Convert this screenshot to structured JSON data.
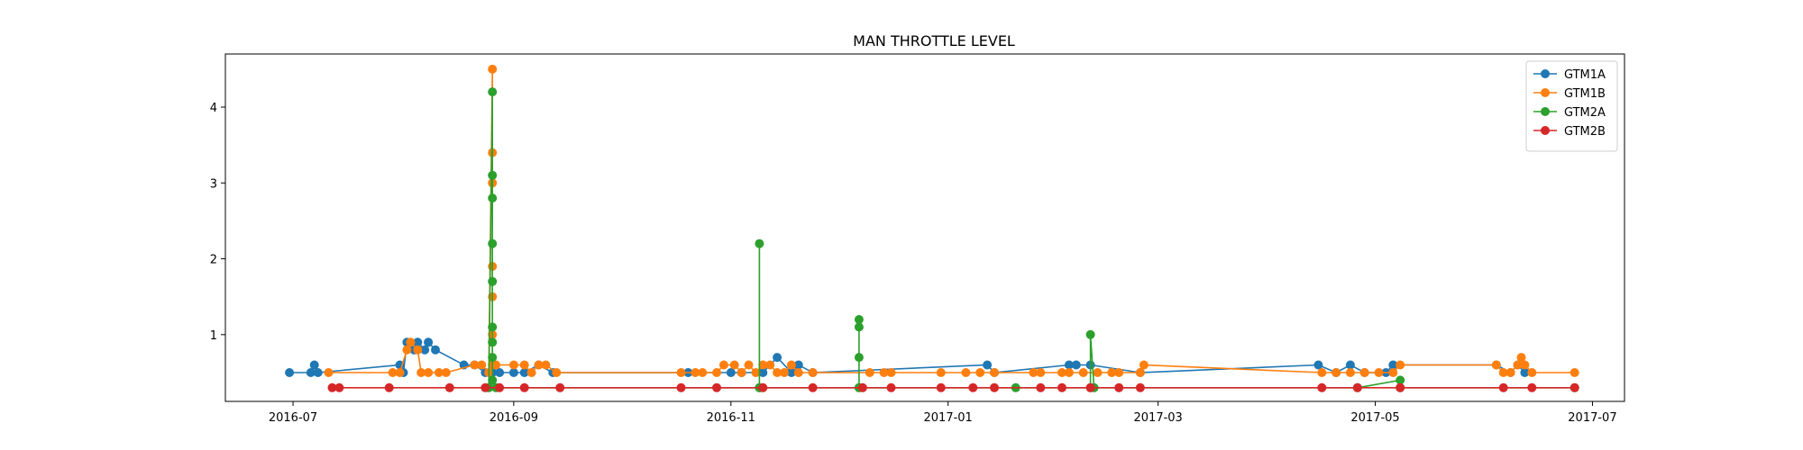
{
  "chart_data": {
    "type": "line",
    "title": "MAN THROTTLE LEVEL",
    "xlabel": "",
    "ylabel": "",
    "xlim": [
      "2016-06-12",
      "2017-07-10"
    ],
    "ylim": [
      0.12,
      4.7
    ],
    "x_ticks": [
      "2016-07-01",
      "2016-09-01",
      "2016-11-01",
      "2017-01-01",
      "2017-03-01",
      "2017-05-01",
      "2017-07-01"
    ],
    "x_tick_labels": [
      "2016-07",
      "2016-09",
      "2016-11",
      "2017-01",
      "2017-03",
      "2017-05",
      "2017-07"
    ],
    "y_ticks": [
      1,
      2,
      3,
      4
    ],
    "y_tick_labels": [
      "1",
      "2",
      "3",
      "4"
    ],
    "grid": false,
    "legend_position": "top-right",
    "series": [
      {
        "name": "GTM1A",
        "color": "#1f77b4",
        "points": [
          [
            "2016-06-30",
            0.5
          ],
          [
            "2016-07-06",
            0.5
          ],
          [
            "2016-07-07",
            0.6
          ],
          [
            "2016-07-08",
            0.5
          ],
          [
            "2016-07-31",
            0.6
          ],
          [
            "2016-08-01",
            0.5
          ],
          [
            "2016-08-02",
            0.9
          ],
          [
            "2016-08-04",
            0.8
          ],
          [
            "2016-08-05",
            0.9
          ],
          [
            "2016-08-07",
            0.8
          ],
          [
            "2016-08-08",
            0.9
          ],
          [
            "2016-08-10",
            0.8
          ],
          [
            "2016-08-18",
            0.6
          ],
          [
            "2016-08-21",
            0.6
          ],
          [
            "2016-08-24",
            0.5
          ],
          [
            "2016-08-26",
            0.5
          ],
          [
            "2016-08-28",
            0.5
          ],
          [
            "2016-09-01",
            0.5
          ],
          [
            "2016-09-04",
            0.5
          ],
          [
            "2016-09-08",
            0.6
          ],
          [
            "2016-09-12",
            0.5
          ],
          [
            "2016-10-20",
            0.5
          ],
          [
            "2016-11-01",
            0.5
          ],
          [
            "2016-11-04",
            0.5
          ],
          [
            "2016-11-10",
            0.5
          ],
          [
            "2016-11-14",
            0.7
          ],
          [
            "2016-11-18",
            0.5
          ],
          [
            "2016-11-20",
            0.6
          ],
          [
            "2016-11-24",
            0.5
          ],
          [
            "2017-01-12",
            0.6
          ],
          [
            "2017-01-14",
            0.5
          ],
          [
            "2017-02-04",
            0.6
          ],
          [
            "2017-02-06",
            0.6
          ],
          [
            "2017-02-10",
            0.6
          ],
          [
            "2017-02-24",
            0.5
          ],
          [
            "2017-04-15",
            0.6
          ],
          [
            "2017-04-20",
            0.5
          ],
          [
            "2017-04-24",
            0.6
          ],
          [
            "2017-04-28",
            0.5
          ],
          [
            "2017-05-04",
            0.5
          ],
          [
            "2017-05-06",
            0.6
          ],
          [
            "2017-06-04",
            0.6
          ],
          [
            "2017-06-08",
            0.5
          ],
          [
            "2017-06-10",
            0.6
          ],
          [
            "2017-06-12",
            0.5
          ]
        ]
      },
      {
        "name": "GTM1B",
        "color": "#ff7f0e",
        "points": [
          [
            "2016-07-11",
            0.5
          ],
          [
            "2016-07-29",
            0.5
          ],
          [
            "2016-07-31",
            0.5
          ],
          [
            "2016-08-02",
            0.8
          ],
          [
            "2016-08-03",
            0.9
          ],
          [
            "2016-08-05",
            0.8
          ],
          [
            "2016-08-06",
            0.5
          ],
          [
            "2016-08-08",
            0.5
          ],
          [
            "2016-08-11",
            0.5
          ],
          [
            "2016-08-13",
            0.5
          ],
          [
            "2016-08-21",
            0.6
          ],
          [
            "2016-08-23",
            0.6
          ],
          [
            "2016-08-25",
            0.5
          ],
          [
            "2016-08-26",
            4.5
          ],
          [
            "2016-08-26",
            3.4
          ],
          [
            "2016-08-26",
            3.0
          ],
          [
            "2016-08-26",
            1.9
          ],
          [
            "2016-08-26",
            1.5
          ],
          [
            "2016-08-26",
            1.0
          ],
          [
            "2016-08-26",
            0.6
          ],
          [
            "2016-08-27",
            0.6
          ],
          [
            "2016-09-01",
            0.6
          ],
          [
            "2016-09-04",
            0.6
          ],
          [
            "2016-09-06",
            0.5
          ],
          [
            "2016-09-08",
            0.6
          ],
          [
            "2016-09-10",
            0.6
          ],
          [
            "2016-09-13",
            0.5
          ],
          [
            "2016-10-18",
            0.5
          ],
          [
            "2016-10-22",
            0.5
          ],
          [
            "2016-10-24",
            0.5
          ],
          [
            "2016-10-28",
            0.5
          ],
          [
            "2016-10-30",
            0.6
          ],
          [
            "2016-11-02",
            0.6
          ],
          [
            "2016-11-04",
            0.5
          ],
          [
            "2016-11-06",
            0.6
          ],
          [
            "2016-11-08",
            0.5
          ],
          [
            "2016-11-10",
            0.6
          ],
          [
            "2016-11-12",
            0.6
          ],
          [
            "2016-11-14",
            0.5
          ],
          [
            "2016-11-16",
            0.5
          ],
          [
            "2016-11-18",
            0.6
          ],
          [
            "2016-11-20",
            0.5
          ],
          [
            "2016-11-24",
            0.5
          ],
          [
            "2016-12-10",
            0.5
          ],
          [
            "2016-12-14",
            0.5
          ],
          [
            "2016-12-16",
            0.5
          ],
          [
            "2016-12-30",
            0.5
          ],
          [
            "2017-01-06",
            0.5
          ],
          [
            "2017-01-10",
            0.5
          ],
          [
            "2017-01-14",
            0.5
          ],
          [
            "2017-01-25",
            0.5
          ],
          [
            "2017-01-27",
            0.5
          ],
          [
            "2017-02-02",
            0.5
          ],
          [
            "2017-02-04",
            0.5
          ],
          [
            "2017-02-08",
            0.5
          ],
          [
            "2017-02-12",
            0.5
          ],
          [
            "2017-02-16",
            0.5
          ],
          [
            "2017-02-18",
            0.5
          ],
          [
            "2017-02-24",
            0.5
          ],
          [
            "2017-02-25",
            0.6
          ],
          [
            "2017-04-16",
            0.5
          ],
          [
            "2017-04-20",
            0.5
          ],
          [
            "2017-04-24",
            0.5
          ],
          [
            "2017-04-28",
            0.5
          ],
          [
            "2017-05-02",
            0.5
          ],
          [
            "2017-05-06",
            0.5
          ],
          [
            "2017-05-08",
            0.6
          ],
          [
            "2017-06-04",
            0.6
          ],
          [
            "2017-06-06",
            0.5
          ],
          [
            "2017-06-08",
            0.5
          ],
          [
            "2017-06-10",
            0.6
          ],
          [
            "2017-06-11",
            0.7
          ],
          [
            "2017-06-12",
            0.6
          ],
          [
            "2017-06-14",
            0.5
          ],
          [
            "2017-06-26",
            0.5
          ]
        ]
      },
      {
        "name": "GTM2A",
        "color": "#2ca02c",
        "points": [
          [
            "2016-08-25",
            0.3
          ],
          [
            "2016-08-26",
            4.2
          ],
          [
            "2016-08-26",
            3.1
          ],
          [
            "2016-08-26",
            2.8
          ],
          [
            "2016-08-26",
            2.2
          ],
          [
            "2016-08-26",
            1.7
          ],
          [
            "2016-08-26",
            1.1
          ],
          [
            "2016-08-26",
            0.9
          ],
          [
            "2016-08-26",
            0.7
          ],
          [
            "2016-08-26",
            0.4
          ],
          [
            "2016-08-27",
            0.3
          ],
          [
            "2016-11-09",
            0.3
          ],
          [
            "2016-11-09",
            2.2
          ],
          [
            "2016-11-09",
            0.3
          ],
          [
            "2016-12-07",
            0.3
          ],
          [
            "2016-12-07",
            1.2
          ],
          [
            "2016-12-07",
            1.1
          ],
          [
            "2016-12-07",
            0.7
          ],
          [
            "2016-12-07",
            0.3
          ],
          [
            "2017-01-20",
            0.3
          ],
          [
            "2017-02-10",
            0.3
          ],
          [
            "2017-02-10",
            1.0
          ],
          [
            "2017-02-11",
            0.3
          ],
          [
            "2017-04-26",
            0.3
          ],
          [
            "2017-05-08",
            0.4
          ],
          [
            "2017-05-08",
            0.3
          ],
          [
            "2017-06-26",
            0.3
          ]
        ]
      },
      {
        "name": "GTM2B",
        "color": "#d62728",
        "points": [
          [
            "2016-07-12",
            0.3
          ],
          [
            "2016-07-14",
            0.3
          ],
          [
            "2016-07-28",
            0.3
          ],
          [
            "2016-08-14",
            0.3
          ],
          [
            "2016-08-24",
            0.3
          ],
          [
            "2016-08-28",
            0.3
          ],
          [
            "2016-09-04",
            0.3
          ],
          [
            "2016-09-14",
            0.3
          ],
          [
            "2016-10-18",
            0.3
          ],
          [
            "2016-10-28",
            0.3
          ],
          [
            "2016-11-10",
            0.3
          ],
          [
            "2016-11-24",
            0.3
          ],
          [
            "2016-12-08",
            0.3
          ],
          [
            "2016-12-16",
            0.3
          ],
          [
            "2016-12-30",
            0.3
          ],
          [
            "2017-01-08",
            0.3
          ],
          [
            "2017-01-14",
            0.3
          ],
          [
            "2017-01-27",
            0.3
          ],
          [
            "2017-02-02",
            0.3
          ],
          [
            "2017-02-10",
            0.3
          ],
          [
            "2017-02-18",
            0.3
          ],
          [
            "2017-02-24",
            0.3
          ],
          [
            "2017-04-16",
            0.3
          ],
          [
            "2017-04-26",
            0.3
          ],
          [
            "2017-05-08",
            0.3
          ],
          [
            "2017-06-06",
            0.3
          ],
          [
            "2017-06-14",
            0.3
          ],
          [
            "2017-06-26",
            0.3
          ]
        ]
      }
    ]
  }
}
